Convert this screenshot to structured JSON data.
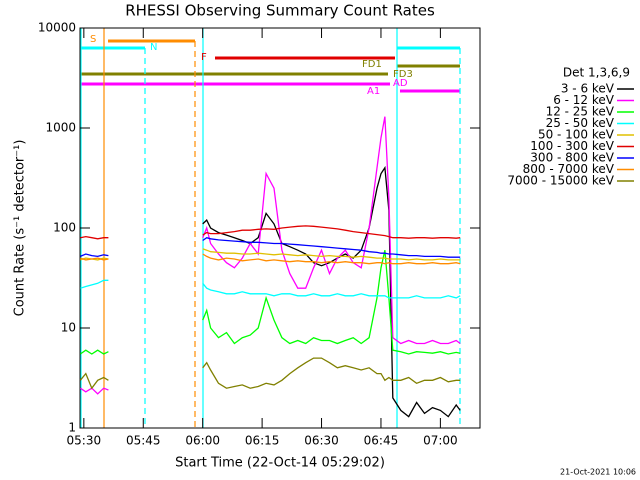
{
  "chart_data": {
    "type": "line",
    "title": "RHESSI Observing Summary Count Rates",
    "xlabel": "Start Time (22-Oct-14 05:29:02)",
    "ylabel": "Count Rate (s⁻¹ detector⁻¹)",
    "legend_title": "Det 1,3,6,9",
    "footer": "21-Oct-2021 10:06",
    "annotations": [
      "S",
      "N",
      "F",
      "FD1",
      "FD3",
      "A1",
      "AD"
    ],
    "log_y": true,
    "ylim": [
      1,
      10000
    ],
    "yticks": [
      1,
      10,
      100,
      1000,
      10000
    ],
    "xlim": [
      29.03,
      130
    ],
    "xticks": [
      {
        "value": 30,
        "label": "05:30"
      },
      {
        "value": 45,
        "label": "05:45"
      },
      {
        "value": 60,
        "label": "06:00"
      },
      {
        "value": 75,
        "label": "06:15"
      },
      {
        "value": 90,
        "label": "06:30"
      },
      {
        "value": 105,
        "label": "06:45"
      },
      {
        "value": 120,
        "label": "07:00"
      }
    ],
    "x": [
      29.1,
      30.5,
      32,
      33.5,
      35,
      36.2,
      48,
      60,
      61,
      62,
      64,
      66,
      68,
      70,
      72,
      74,
      76,
      78,
      80,
      82,
      84,
      86,
      88,
      90,
      92,
      94,
      96,
      98,
      100,
      102,
      104,
      105,
      106,
      107,
      108,
      110,
      112,
      114,
      116,
      118,
      120,
      122,
      124,
      125
    ],
    "series": [
      {
        "name": "3 - 6 keV",
        "color": "#000000",
        "values": [
          null,
          null,
          null,
          null,
          null,
          null,
          null,
          110,
          120,
          100,
          90,
          85,
          80,
          75,
          70,
          80,
          140,
          110,
          70,
          65,
          60,
          55,
          45,
          42,
          45,
          50,
          55,
          50,
          60,
          100,
          250,
          350,
          400,
          150,
          2,
          1.5,
          1.3,
          1.8,
          1.4,
          1.6,
          1.5,
          1.3,
          1.7,
          1.5
        ]
      },
      {
        "name": "6 - 12 keV",
        "color": "#ff00ff",
        "values": [
          2.5,
          2.3,
          2.5,
          2.2,
          2.5,
          2.4,
          null,
          80,
          100,
          70,
          55,
          45,
          40,
          50,
          70,
          55,
          350,
          250,
          60,
          35,
          25,
          25,
          40,
          60,
          35,
          50,
          60,
          45,
          40,
          100,
          400,
          800,
          1300,
          200,
          8,
          7,
          7.5,
          7,
          7,
          7.5,
          7,
          7,
          7.5,
          7
        ]
      },
      {
        "name": "12 - 25 keV",
        "color": "#00ff00",
        "values": [
          5.5,
          6,
          5.5,
          6,
          5.5,
          5.8,
          null,
          12,
          15,
          10,
          8,
          9,
          7,
          8,
          8.5,
          10,
          20,
          12,
          8,
          7,
          7.5,
          7,
          8,
          7.5,
          7.5,
          7,
          7.5,
          8,
          7,
          8,
          20,
          40,
          60,
          20,
          6,
          5.8,
          5.5,
          5.8,
          5.7,
          5.6,
          5.8,
          5.5,
          5.7,
          5.6
        ]
      },
      {
        "name": "25 - 50 keV",
        "color": "#00ffff",
        "values": [
          25,
          26,
          27,
          28,
          30,
          30,
          null,
          28,
          25,
          24,
          23,
          22,
          22,
          23,
          22,
          22,
          22,
          21,
          22,
          22,
          21,
          21,
          22,
          21,
          21,
          22,
          21,
          21,
          22,
          21,
          21,
          21,
          21,
          20,
          20,
          20,
          20,
          21,
          20,
          20,
          20,
          21,
          20,
          21
        ]
      },
      {
        "name": "50 - 100 keV",
        "color": "#e0c000",
        "values": [
          48,
          50,
          49,
          48,
          50,
          49,
          null,
          62,
          60,
          58,
          57,
          56,
          56,
          55,
          55,
          56,
          55,
          54,
          55,
          54,
          53,
          54,
          53,
          52,
          53,
          52,
          52,
          51,
          52,
          51,
          50,
          50,
          50,
          49,
          49,
          49,
          48,
          49,
          48,
          48,
          49,
          48,
          48,
          48
        ]
      },
      {
        "name": "100 - 300 keV",
        "color": "#e00000",
        "values": [
          80,
          82,
          80,
          78,
          80,
          80,
          null,
          85,
          90,
          88,
          88,
          90,
          92,
          95,
          95,
          97,
          98,
          97,
          100,
          102,
          104,
          105,
          104,
          102,
          100,
          98,
          95,
          92,
          90,
          88,
          86,
          85,
          84,
          82,
          80,
          80,
          79,
          80,
          80,
          79,
          80,
          80,
          79,
          80
        ]
      },
      {
        "name": "300 - 800 keV",
        "color": "#0000ff",
        "values": [
          52,
          55,
          53,
          52,
          54,
          53,
          null,
          75,
          80,
          78,
          76,
          75,
          74,
          73,
          72,
          72,
          71,
          70,
          70,
          69,
          68,
          67,
          66,
          65,
          64,
          63,
          62,
          61,
          60,
          58,
          57,
          56,
          56,
          55,
          55,
          54,
          53,
          53,
          52,
          52,
          52,
          51,
          51,
          51
        ]
      },
      {
        "name": "800 - 7000 keV",
        "color": "#ff8c00",
        "values": [
          50,
          48,
          49,
          50,
          48,
          49,
          null,
          55,
          52,
          50,
          48,
          50,
          49,
          47,
          48,
          49,
          47,
          48,
          47,
          46,
          47,
          46,
          46,
          45,
          46,
          45,
          46,
          45,
          45,
          44,
          45,
          45,
          44,
          45,
          44,
          44,
          45,
          44,
          44,
          45,
          44,
          44,
          45,
          44
        ]
      },
      {
        "name": "7000 - 15000 keV",
        "color": "#808000",
        "values": [
          3,
          3.5,
          2.5,
          3,
          3.2,
          3,
          null,
          4,
          4.5,
          3.8,
          2.8,
          2.5,
          2.6,
          2.7,
          2.5,
          2.6,
          2.8,
          2.7,
          3,
          3.5,
          4,
          4.5,
          5,
          5,
          4.5,
          4,
          4.2,
          4,
          3.8,
          4,
          3.5,
          3.5,
          3,
          3.2,
          3,
          3,
          3.2,
          2.8,
          3,
          3,
          3.2,
          2.9,
          3,
          3
        ]
      }
    ]
  }
}
